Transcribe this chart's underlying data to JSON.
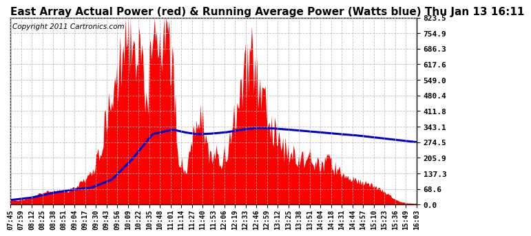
{
  "title": "East Array Actual Power (red) & Running Average Power (Watts blue) Thu Jan 13 16:11",
  "copyright": "Copyright 2011 Cartronics.com",
  "yticks": [
    0.0,
    68.6,
    137.3,
    205.9,
    274.5,
    343.1,
    411.8,
    480.4,
    549.0,
    617.6,
    686.3,
    754.9,
    823.5
  ],
  "ymax": 823.5,
  "ymin": 0.0,
  "bg_color": "#ffffff",
  "plot_bg_color": "#ffffff",
  "grid_color": "#bbbbbb",
  "bar_color": "#ff0000",
  "line_color": "#0000cc",
  "title_fontsize": 11,
  "copyright_fontsize": 7.5,
  "xtick_labels": [
    "07:45",
    "07:59",
    "08:12",
    "08:25",
    "08:38",
    "08:51",
    "09:04",
    "09:17",
    "09:30",
    "09:43",
    "09:56",
    "10:09",
    "10:22",
    "10:35",
    "10:48",
    "11:01",
    "11:14",
    "11:27",
    "11:40",
    "11:53",
    "12:06",
    "12:19",
    "12:33",
    "12:46",
    "12:59",
    "13:12",
    "13:25",
    "13:38",
    "13:51",
    "14:04",
    "14:18",
    "14:31",
    "14:44",
    "14:57",
    "15:10",
    "15:23",
    "15:36",
    "15:49",
    "16:03"
  ],
  "actual_power_keypoints": {
    "times_norm": [
      0.0,
      0.02,
      0.04,
      0.06,
      0.07,
      0.09,
      0.11,
      0.13,
      0.15,
      0.17,
      0.19,
      0.21,
      0.23,
      0.25,
      0.265,
      0.275,
      0.285,
      0.295,
      0.305,
      0.315,
      0.325,
      0.335,
      0.345,
      0.355,
      0.365,
      0.375,
      0.385,
      0.395,
      0.405,
      0.415,
      0.425,
      0.435,
      0.445,
      0.455,
      0.465,
      0.475,
      0.485,
      0.495,
      0.505,
      0.515,
      0.525,
      0.535,
      0.545,
      0.555,
      0.565,
      0.575,
      0.585,
      0.595,
      0.605,
      0.615,
      0.625,
      0.635,
      0.645,
      0.655,
      0.665,
      0.675,
      0.685,
      0.695,
      0.705,
      0.715,
      0.725,
      0.735,
      0.745,
      0.755,
      0.765,
      0.775,
      0.785,
      0.795,
      0.81,
      0.825,
      0.84,
      0.855,
      0.87,
      0.885,
      0.9,
      0.915,
      0.93,
      0.945,
      0.96,
      0.975,
      1.0
    ],
    "values": [
      20,
      22,
      30,
      40,
      55,
      65,
      70,
      68,
      75,
      100,
      140,
      200,
      350,
      500,
      600,
      700,
      750,
      820,
      780,
      700,
      620,
      500,
      650,
      780,
      810,
      820,
      790,
      700,
      500,
      200,
      180,
      200,
      320,
      390,
      440,
      380,
      250,
      210,
      250,
      180,
      220,
      280,
      350,
      470,
      520,
      620,
      680,
      700,
      620,
      550,
      490,
      430,
      370,
      320,
      290,
      260,
      250,
      240,
      230,
      220,
      210,
      250,
      200,
      190,
      180,
      220,
      200,
      180,
      160,
      140,
      130,
      120,
      110,
      100,
      90,
      70,
      50,
      30,
      15,
      8,
      5
    ]
  },
  "running_avg_keypoints": {
    "times_norm": [
      0.0,
      0.05,
      0.1,
      0.15,
      0.2,
      0.25,
      0.3,
      0.35,
      0.4,
      0.43,
      0.46,
      0.49,
      0.53,
      0.57,
      0.61,
      0.65,
      0.7,
      0.75,
      0.8,
      0.85,
      0.9,
      0.95,
      1.0
    ],
    "values": [
      20,
      30,
      50,
      65,
      75,
      110,
      200,
      310,
      330,
      318,
      310,
      312,
      318,
      330,
      338,
      335,
      328,
      320,
      312,
      305,
      295,
      285,
      275
    ]
  }
}
